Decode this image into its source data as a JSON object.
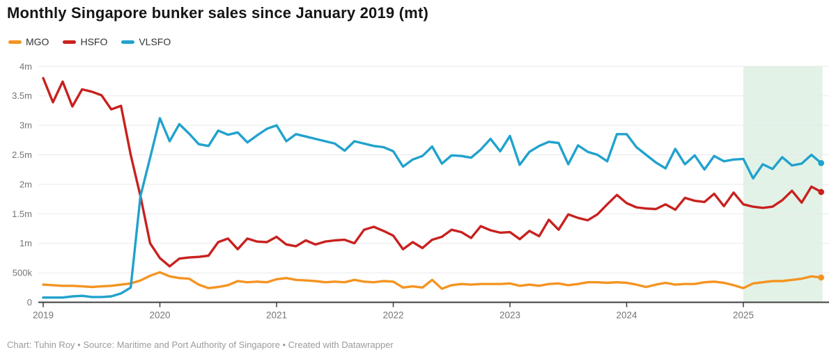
{
  "header": {
    "title": "Monthly Singapore bunker sales since January 2019 (mt)"
  },
  "footer": {
    "text": "Chart: Tuhin Roy • Source: Maritime and Port Authority of Singapore • Created with Datawrapper"
  },
  "chart_data": {
    "type": "line",
    "title": "Monthly Singapore bunker sales since January 2019 (mt)",
    "unit": "mt",
    "x_monthly_from": "2019-01",
    "x_monthly_to": "2025-09",
    "x_tick_labels": [
      "2019",
      "2020",
      "2021",
      "2022",
      "2023",
      "2024",
      "2025"
    ],
    "y_tick_labels": [
      "0",
      "500k",
      "1m",
      "1.5m",
      "2m",
      "2.5m",
      "3m",
      "3.5m",
      "4m"
    ],
    "ylim_mt": [
      0,
      4000000
    ],
    "grid": "horizontal",
    "legend_position": "top-left",
    "highlight_region": {
      "from": "2025-01",
      "to": "2025-09",
      "color": "#e2f2e7"
    },
    "colors": {
      "gridline": "#e9e9e9",
      "axis": "#3d3d3d",
      "tick_label": "#757575",
      "footer_text": "#9b9b9b"
    },
    "series": [
      {
        "name": "MGO",
        "color": "#f49422",
        "unit": "million mt",
        "values": [
          0.3,
          0.29,
          0.28,
          0.28,
          0.27,
          0.26,
          0.27,
          0.28,
          0.3,
          0.32,
          0.37,
          0.45,
          0.51,
          0.44,
          0.41,
          0.4,
          0.3,
          0.24,
          0.26,
          0.29,
          0.36,
          0.34,
          0.35,
          0.34,
          0.39,
          0.41,
          0.38,
          0.37,
          0.36,
          0.34,
          0.35,
          0.34,
          0.38,
          0.35,
          0.34,
          0.36,
          0.35,
          0.25,
          0.27,
          0.25,
          0.38,
          0.23,
          0.29,
          0.31,
          0.3,
          0.31,
          0.31,
          0.31,
          0.32,
          0.28,
          0.3,
          0.28,
          0.31,
          0.32,
          0.29,
          0.31,
          0.34,
          0.34,
          0.33,
          0.34,
          0.33,
          0.3,
          0.26,
          0.3,
          0.33,
          0.3,
          0.31,
          0.31,
          0.34,
          0.35,
          0.33,
          0.29,
          0.24,
          0.32,
          0.34,
          0.36,
          0.36,
          0.38,
          0.4,
          0.44,
          0.42
        ]
      },
      {
        "name": "HSFO",
        "color": "#c8211f",
        "unit": "million mt",
        "values": [
          3.8,
          3.39,
          3.74,
          3.32,
          3.61,
          3.57,
          3.51,
          3.27,
          3.33,
          2.5,
          1.8,
          1.0,
          0.75,
          0.61,
          0.74,
          0.76,
          0.77,
          0.79,
          1.02,
          1.08,
          0.9,
          1.08,
          1.03,
          1.02,
          1.11,
          0.98,
          0.95,
          1.05,
          0.98,
          1.03,
          1.05,
          1.06,
          1.0,
          1.23,
          1.28,
          1.21,
          1.13,
          0.9,
          1.02,
          0.92,
          1.06,
          1.11,
          1.23,
          1.19,
          1.09,
          1.29,
          1.22,
          1.18,
          1.19,
          1.07,
          1.21,
          1.12,
          1.4,
          1.23,
          1.49,
          1.43,
          1.39,
          1.49,
          1.66,
          1.82,
          1.68,
          1.61,
          1.59,
          1.58,
          1.66,
          1.57,
          1.77,
          1.72,
          1.7,
          1.84,
          1.63,
          1.86,
          1.66,
          1.62,
          1.6,
          1.62,
          1.73,
          1.89,
          1.69,
          1.96,
          1.87
        ]
      },
      {
        "name": "VLSFO",
        "color": "#21a2cd",
        "unit": "million mt",
        "values": [
          0.08,
          0.08,
          0.08,
          0.1,
          0.11,
          0.09,
          0.09,
          0.1,
          0.15,
          0.25,
          1.8,
          2.45,
          3.12,
          2.73,
          3.02,
          2.86,
          2.68,
          2.65,
          2.91,
          2.84,
          2.88,
          2.71,
          2.83,
          2.94,
          3.0,
          2.73,
          2.85,
          2.81,
          2.77,
          2.73,
          2.69,
          2.57,
          2.73,
          2.69,
          2.65,
          2.63,
          2.56,
          2.3,
          2.42,
          2.48,
          2.64,
          2.35,
          2.49,
          2.48,
          2.45,
          2.59,
          2.77,
          2.56,
          2.82,
          2.33,
          2.55,
          2.65,
          2.72,
          2.7,
          2.34,
          2.66,
          2.55,
          2.5,
          2.39,
          2.85,
          2.85,
          2.63,
          2.5,
          2.37,
          2.27,
          2.6,
          2.34,
          2.49,
          2.25,
          2.48,
          2.39,
          2.42,
          2.43,
          2.1,
          2.34,
          2.26,
          2.46,
          2.32,
          2.35,
          2.5,
          2.36
        ]
      }
    ]
  }
}
